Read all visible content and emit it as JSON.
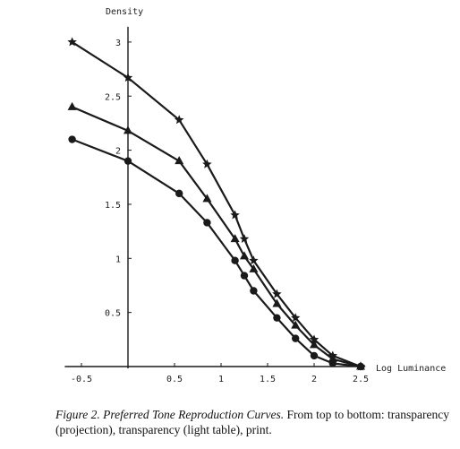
{
  "chart_data": {
    "type": "line",
    "title": "",
    "xlabel": "Log Luminance",
    "ylabel": "Density",
    "xlim": [
      -0.65,
      2.55
    ],
    "ylim": [
      0,
      3.1
    ],
    "x_ticks": [
      "-0.5",
      "0.5",
      "1",
      "1.5",
      "2",
      "2.5"
    ],
    "x_tick_values": [
      -0.5,
      0.5,
      1,
      1.5,
      2,
      2.5
    ],
    "y_ticks": [
      "0.5",
      "1",
      "1.5",
      "2",
      "2.5",
      "3"
    ],
    "y_tick_values": [
      0.5,
      1,
      1.5,
      2,
      2.5,
      3
    ],
    "grid": false,
    "series": [
      {
        "marker": "star",
        "x": [
          -0.6,
          0,
          0.55,
          0.85,
          1.15,
          1.25,
          1.35,
          1.6,
          1.8,
          2.0,
          2.2,
          2.5
        ],
        "y": [
          3.0,
          2.67,
          2.28,
          1.87,
          1.4,
          1.18,
          0.98,
          0.67,
          0.45,
          0.25,
          0.1,
          0.0
        ]
      },
      {
        "marker": "triangle",
        "x": [
          -0.6,
          0,
          0.55,
          0.85,
          1.15,
          1.25,
          1.35,
          1.6,
          1.8,
          2.0,
          2.2,
          2.5
        ],
        "y": [
          2.4,
          2.18,
          1.9,
          1.55,
          1.18,
          1.02,
          0.9,
          0.58,
          0.38,
          0.2,
          0.07,
          0.0
        ]
      },
      {
        "marker": "circle",
        "x": [
          -0.6,
          0,
          0.55,
          0.85,
          1.15,
          1.25,
          1.35,
          1.6,
          1.8,
          2.0,
          2.2,
          2.5
        ],
        "y": [
          2.1,
          1.9,
          1.6,
          1.33,
          0.98,
          0.84,
          0.7,
          0.45,
          0.26,
          0.1,
          0.03,
          0.0
        ]
      }
    ]
  },
  "caption": {
    "lead": "Figure 2. Preferred Tone Reproduction Curves.",
    "rest": " From top to bottom: transparency (projection), transparency (light table), print."
  },
  "colors": {
    "ink": "#1a1a1a"
  }
}
